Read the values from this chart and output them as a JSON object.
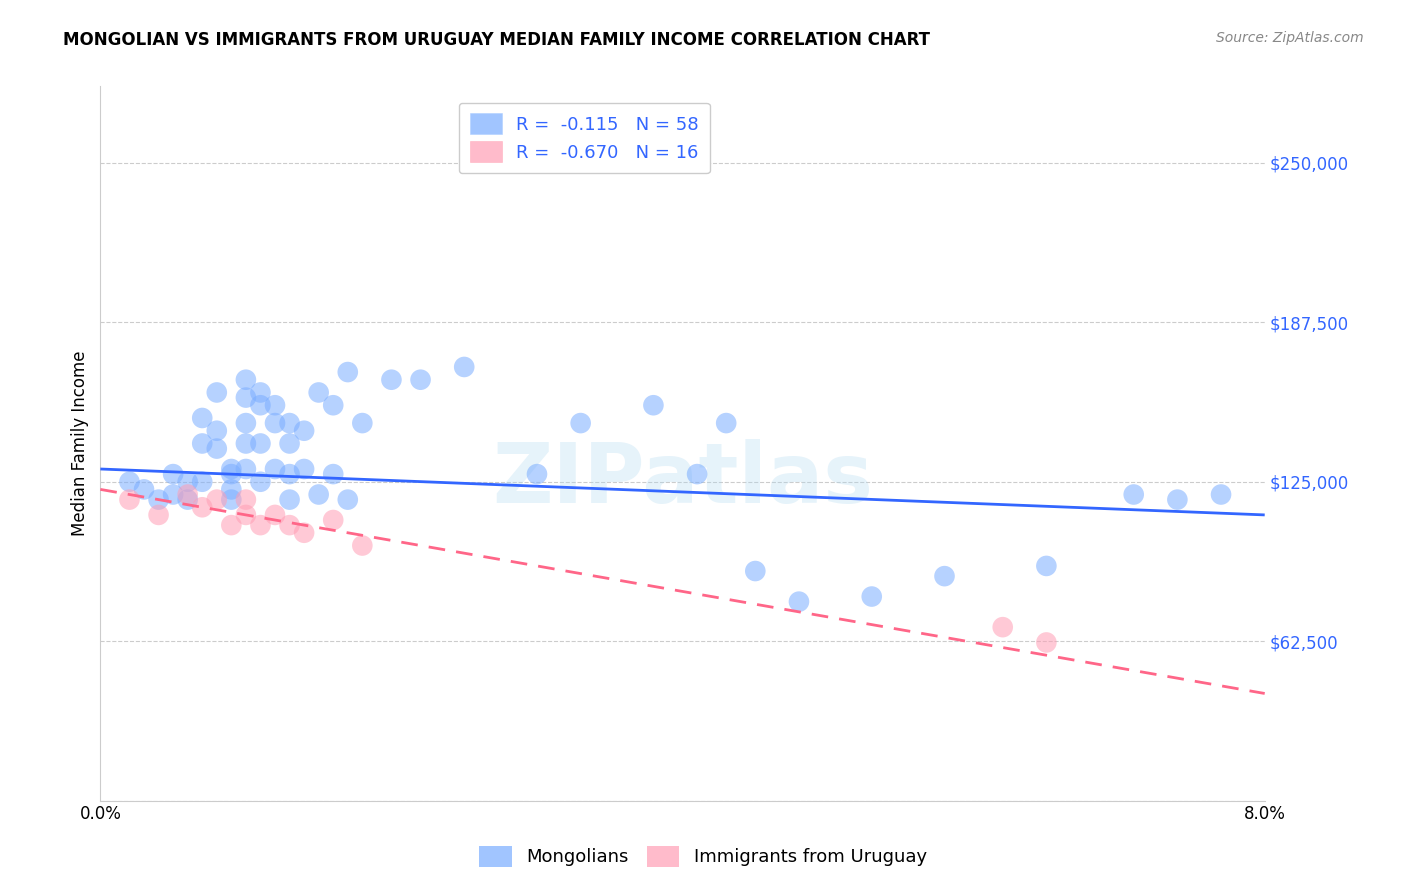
{
  "title": "MONGOLIAN VS IMMIGRANTS FROM URUGUAY MEDIAN FAMILY INCOME CORRELATION CHART",
  "source": "Source: ZipAtlas.com",
  "ylabel": "Median Family Income",
  "watermark": "ZIPatlas",
  "xlim": [
    0.0,
    0.08
  ],
  "ylim": [
    0,
    280000
  ],
  "yticks": [
    0,
    62500,
    125000,
    187500,
    250000
  ],
  "legend1_r": "-0.115",
  "legend1_n": "58",
  "legend2_r": "-0.670",
  "legend2_n": "16",
  "blue_color": "#7AADFF",
  "pink_color": "#FF9EB5",
  "line_blue": "#3366FF",
  "line_pink": "#FF6688",
  "mongolians_x": [
    0.002,
    0.003,
    0.004,
    0.005,
    0.005,
    0.006,
    0.006,
    0.007,
    0.007,
    0.007,
    0.008,
    0.008,
    0.008,
    0.009,
    0.009,
    0.009,
    0.009,
    0.01,
    0.01,
    0.01,
    0.01,
    0.01,
    0.011,
    0.011,
    0.011,
    0.011,
    0.012,
    0.012,
    0.012,
    0.013,
    0.013,
    0.013,
    0.013,
    0.014,
    0.014,
    0.015,
    0.015,
    0.016,
    0.016,
    0.017,
    0.017,
    0.018,
    0.02,
    0.022,
    0.025,
    0.03,
    0.033,
    0.038,
    0.041,
    0.043,
    0.045,
    0.048,
    0.053,
    0.058,
    0.065,
    0.071,
    0.074,
    0.077
  ],
  "mongolians_y": [
    125000,
    122000,
    118000,
    128000,
    120000,
    125000,
    118000,
    150000,
    140000,
    125000,
    160000,
    145000,
    138000,
    130000,
    128000,
    122000,
    118000,
    165000,
    158000,
    148000,
    140000,
    130000,
    160000,
    155000,
    140000,
    125000,
    155000,
    148000,
    130000,
    148000,
    140000,
    128000,
    118000,
    145000,
    130000,
    160000,
    120000,
    155000,
    128000,
    168000,
    118000,
    148000,
    165000,
    165000,
    170000,
    128000,
    148000,
    155000,
    128000,
    148000,
    90000,
    78000,
    80000,
    88000,
    92000,
    120000,
    118000,
    120000
  ],
  "uruguay_x": [
    0.002,
    0.004,
    0.006,
    0.007,
    0.008,
    0.009,
    0.01,
    0.01,
    0.011,
    0.012,
    0.013,
    0.014,
    0.016,
    0.018,
    0.062,
    0.065
  ],
  "uruguay_y": [
    118000,
    112000,
    120000,
    115000,
    118000,
    108000,
    118000,
    112000,
    108000,
    112000,
    108000,
    105000,
    110000,
    100000,
    68000,
    62000
  ],
  "blue_line_x": [
    0.0,
    0.08
  ],
  "blue_line_y": [
    130000,
    112000
  ],
  "pink_line_x": [
    0.0,
    0.08
  ],
  "pink_line_y": [
    122000,
    42000
  ]
}
